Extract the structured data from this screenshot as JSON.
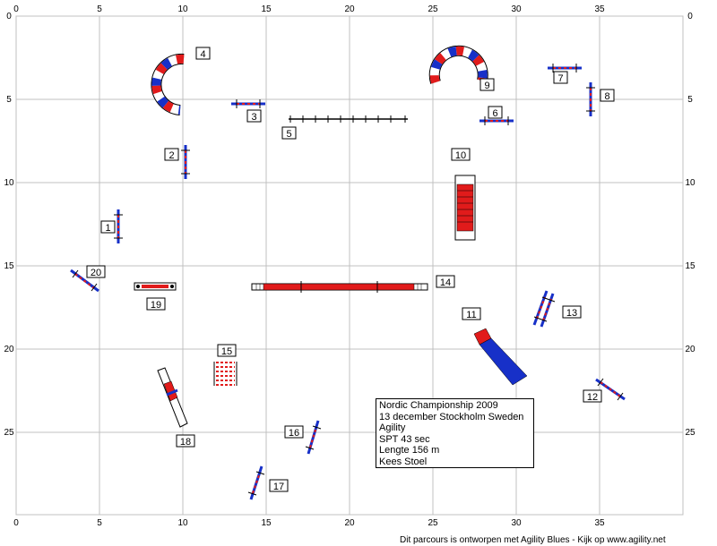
{
  "grid": {
    "x_ticks": [
      "0",
      "5",
      "10",
      "15",
      "20",
      "25",
      "30",
      "35"
    ],
    "y_ticks": [
      "0",
      "5",
      "10",
      "15",
      "20",
      "25"
    ]
  },
  "obstacles": [
    {
      "num": "1",
      "type": "jump"
    },
    {
      "num": "2",
      "type": "jump"
    },
    {
      "num": "3",
      "type": "jump"
    },
    {
      "num": "4",
      "type": "tunnel"
    },
    {
      "num": "5",
      "type": "dogwalk"
    },
    {
      "num": "6",
      "type": "jump"
    },
    {
      "num": "7",
      "type": "jump"
    },
    {
      "num": "8",
      "type": "jump"
    },
    {
      "num": "9",
      "type": "tunnel"
    },
    {
      "num": "10",
      "type": "tire-frame"
    },
    {
      "num": "11",
      "type": "a-frame"
    },
    {
      "num": "12",
      "type": "jump"
    },
    {
      "num": "13",
      "type": "double-jump"
    },
    {
      "num": "14",
      "type": "dogwalk"
    },
    {
      "num": "15",
      "type": "weave-poles"
    },
    {
      "num": "16",
      "type": "jump"
    },
    {
      "num": "17",
      "type": "jump"
    },
    {
      "num": "18",
      "type": "seesaw"
    },
    {
      "num": "19",
      "type": "table"
    },
    {
      "num": "20",
      "type": "jump"
    }
  ],
  "info": {
    "line1": "Nordic Championship 2009",
    "line2": "13 december Stockholm Sweden",
    "line3": "Agility",
    "line4": "SPT 43 sec",
    "line5": "Lengte 156 m",
    "line6": "Kees Stoel"
  },
  "footer": "Dit parcours is ontworpen met Agility Blues - Kijk op www.agility.net",
  "colors": {
    "red": "#e11b1b",
    "blue": "#1730c8",
    "grid": "#c0c0c0"
  }
}
